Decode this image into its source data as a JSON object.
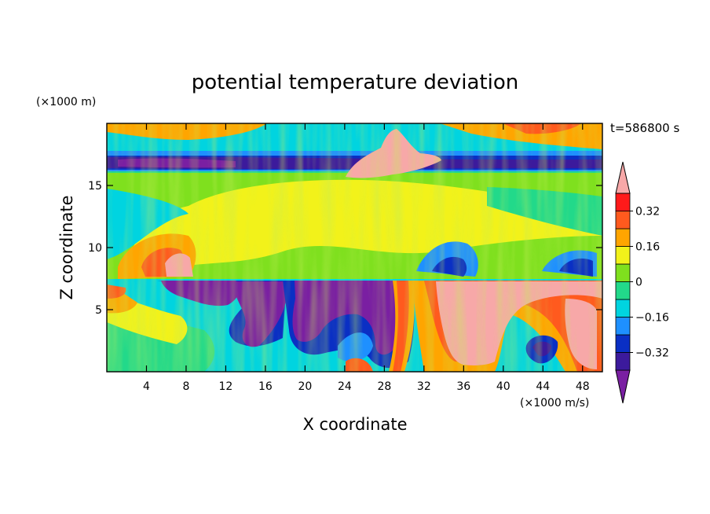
{
  "chart_data": {
    "type": "heatmap",
    "title": "potential temperature deviation",
    "xlabel": "X coordinate",
    "ylabel": "Z coordinate",
    "x_unit_label": "(×1000 m/s)",
    "y_unit_label": "(×1000 m)",
    "time_label": "t=586800 s",
    "xlim": [
      0,
      50
    ],
    "ylim": [
      0,
      20
    ],
    "x_ticks": [
      4,
      8,
      12,
      16,
      20,
      24,
      28,
      32,
      36,
      40,
      44,
      48
    ],
    "y_ticks": [
      5,
      10,
      15
    ],
    "colorbar": {
      "levels": [
        -0.4,
        -0.32,
        -0.24,
        -0.16,
        -0.08,
        0,
        0.08,
        0.16,
        0.24,
        0.32,
        0.4
      ],
      "tick_values": [
        0.32,
        0.16,
        0,
        -0.16,
        -0.32
      ],
      "tick_labels": [
        "0.32",
        "0.16",
        "0",
        "−0.16",
        "−0.32"
      ],
      "colors": [
        "#7a1fa2",
        "#3c1a9c",
        "#0a2fc4",
        "#1e90ff",
        "#00d4e0",
        "#22d98a",
        "#7fe01e",
        "#f2f21a",
        "#ffa500",
        "#ff5a1e",
        "#ff1a1a",
        "#f7a8a8"
      ]
    }
  }
}
